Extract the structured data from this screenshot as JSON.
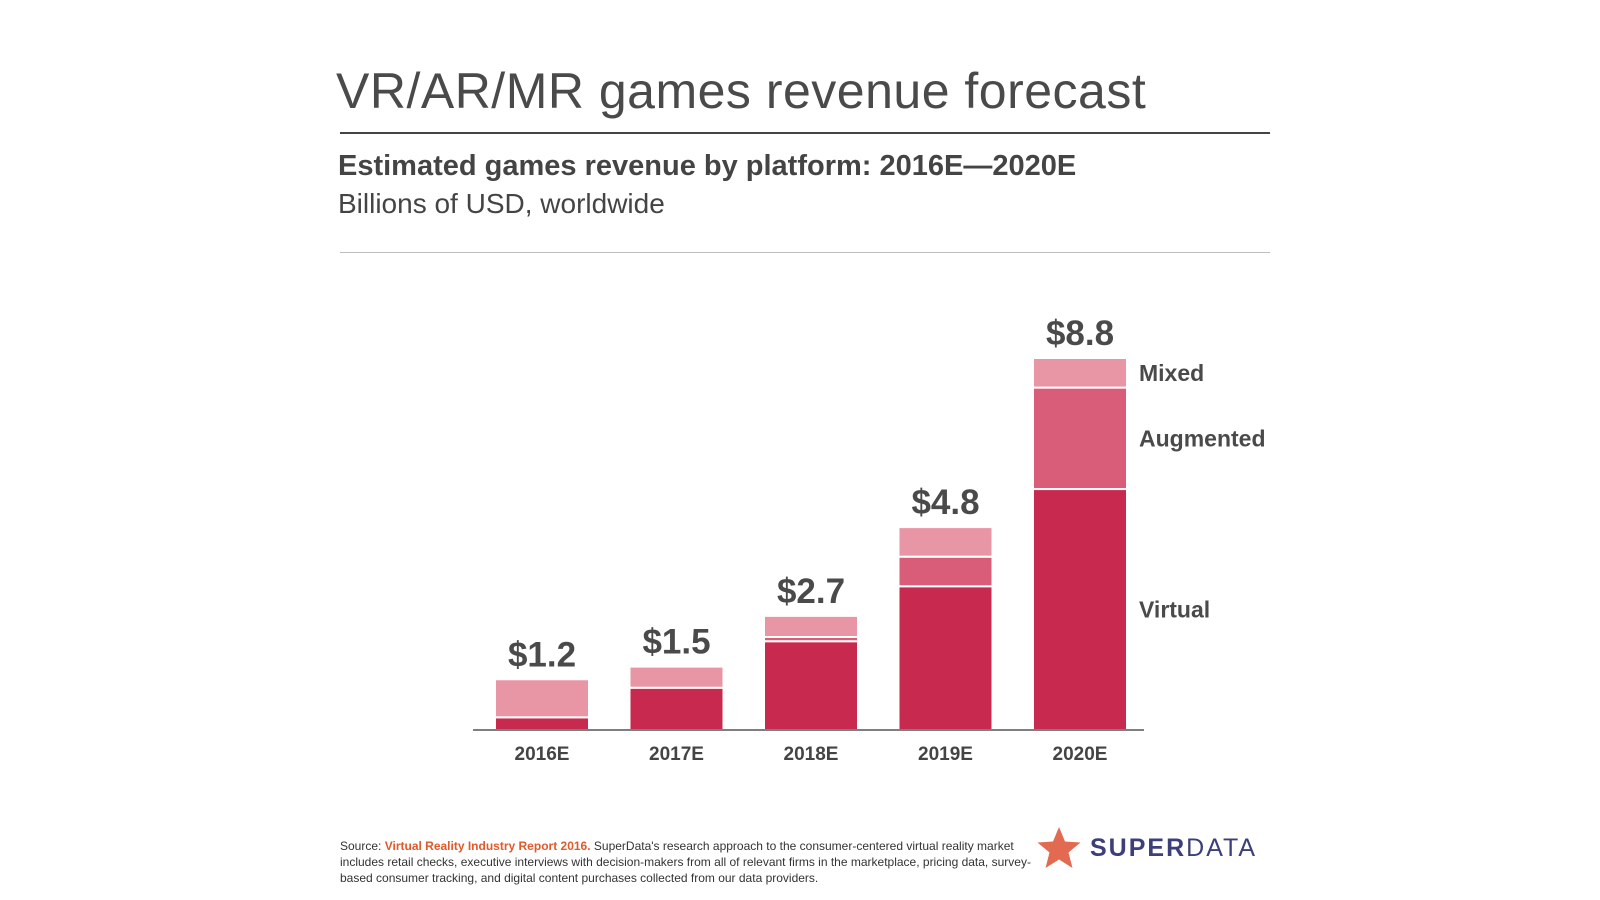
{
  "header": {
    "title": "VR/AR/MR games revenue forecast",
    "subtitle": "Estimated games revenue by platform: 2016E—2020E",
    "unit": "Billions of USD, worldwide"
  },
  "chart_data": {
    "type": "bar",
    "stacked": true,
    "categories": [
      "2016E",
      "2017E",
      "2018E",
      "2019E",
      "2020E"
    ],
    "series": [
      {
        "name": "Virtual",
        "values": [
          0.3,
          1.0,
          2.1,
          3.4,
          5.7
        ],
        "color": "#c8294f"
      },
      {
        "name": "Augmented",
        "values": [
          0.0,
          0.0,
          0.1,
          0.7,
          2.4
        ],
        "color": "#d95c79"
      },
      {
        "name": "Mixed",
        "values": [
          0.9,
          0.5,
          0.5,
          0.7,
          0.7
        ],
        "color": "#e896a6"
      }
    ],
    "total_labels": [
      "$1.2",
      "$1.5",
      "$2.7",
      "$4.8",
      "$8.8"
    ],
    "ylim": [
      0,
      8.8
    ],
    "grid": false,
    "legend": "right of last bar"
  },
  "footer": {
    "source_prefix": "Source: ",
    "source_link": "Virtual Reality Industry Report 2016.",
    "source_text": " SuperData's research approach to the consumer-centered virtual reality market includes retail checks, executive interviews with decision-makers from all of relevant firms in the marketplace, pricing data, survey-based consumer tracking, and digital content purchases collected from our data providers."
  },
  "logo": {
    "icon": "star-icon",
    "text_bold": "SUPER",
    "text_regular": "DATA",
    "star_color": "#e26a50",
    "text_color": "#3c3f7a"
  }
}
